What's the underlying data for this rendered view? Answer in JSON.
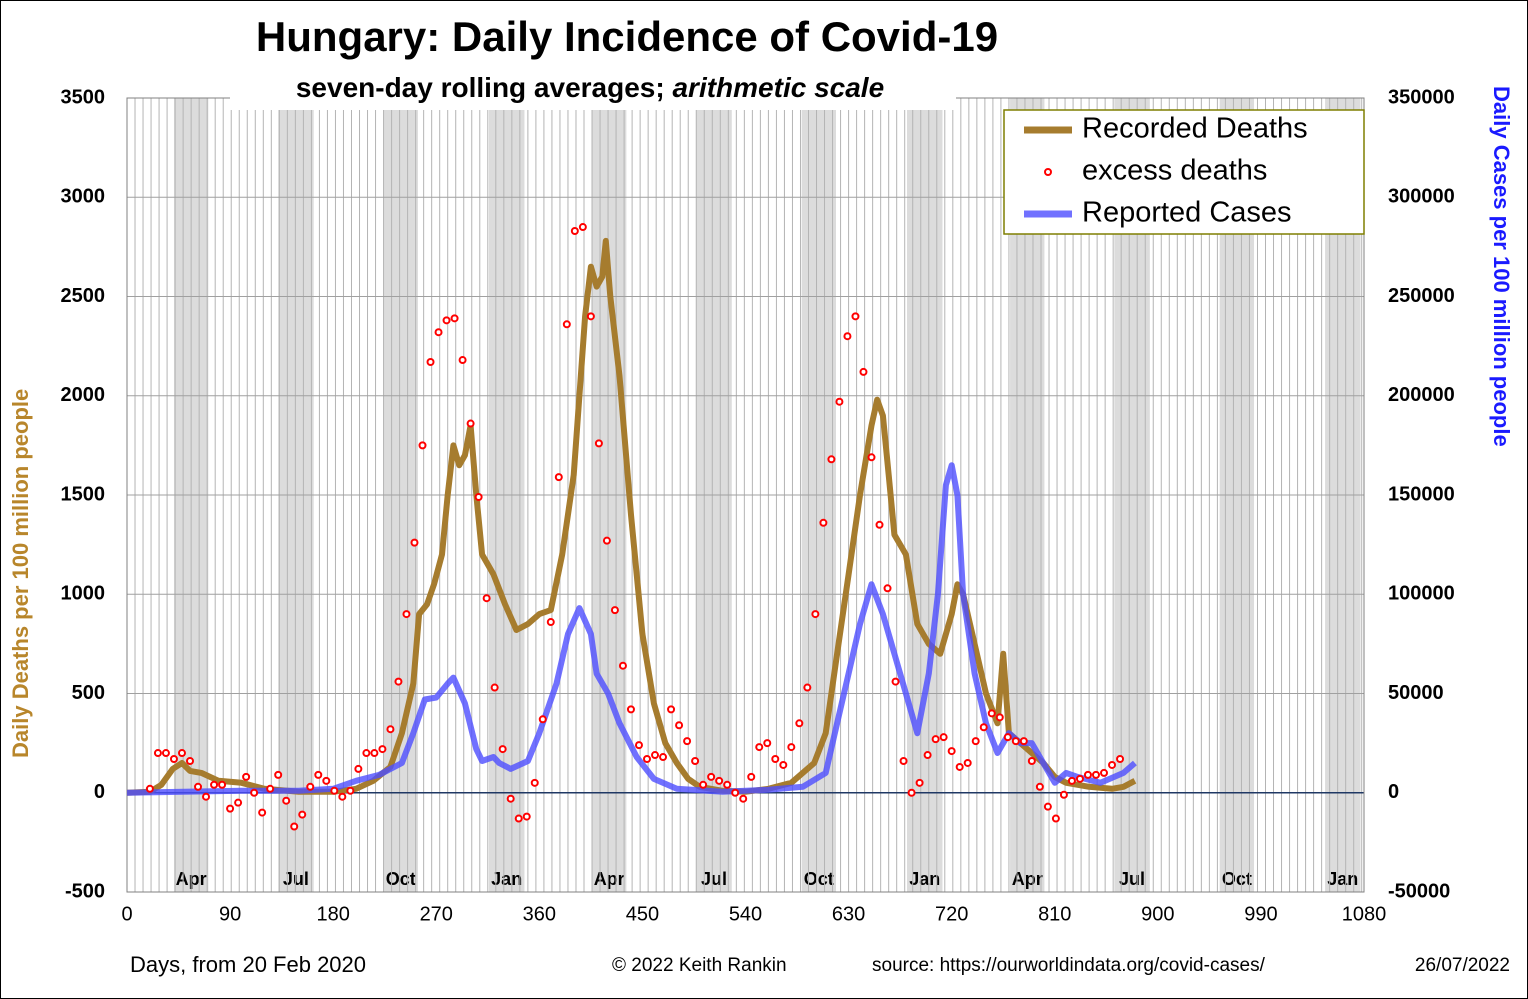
{
  "chart_data": {
    "type": "line",
    "title": "Hungary: Daily Incidence of Covid-19",
    "subtitle": "seven-day rolling averages; ",
    "subtitle_italic": "arithmetic scale",
    "xlabel": "Days, from 20 Feb 2020",
    "ylabel": "Daily Deaths per 100 million people",
    "y2label": "Daily Cases per 100 million people",
    "footer": [
      "© 2022  Keith Rankin",
      "source: https://ourworldindata.org/covid-cases/",
      "26/07/2022"
    ],
    "xlim": [
      0,
      1080
    ],
    "xticks": [
      0,
      90,
      180,
      270,
      360,
      450,
      540,
      630,
      720,
      810,
      900,
      990,
      1080
    ],
    "ylim": [
      -500,
      3500
    ],
    "yticks": [
      -500,
      0,
      500,
      1000,
      1500,
      2000,
      2500,
      3000,
      3500
    ],
    "y2lim": [
      -50000,
      350000
    ],
    "y2ticks": [
      -50000,
      0,
      50000,
      100000,
      150000,
      200000,
      250000,
      300000,
      350000
    ],
    "grid": true,
    "legend": "top-right",
    "month_bands": [
      {
        "label": "Apr",
        "start": 41,
        "end": 71
      },
      {
        "label": "Jul",
        "start": 132,
        "end": 163
      },
      {
        "label": "Oct",
        "start": 224,
        "end": 254
      },
      {
        "label": "Jan",
        "start": 316,
        "end": 347
      },
      {
        "label": "Apr",
        "start": 406,
        "end": 436
      },
      {
        "label": "Jul",
        "start": 497,
        "end": 528
      },
      {
        "label": "Oct",
        "start": 589,
        "end": 619
      },
      {
        "label": "Jan",
        "start": 681,
        "end": 712
      },
      {
        "label": "Apr",
        "start": 771,
        "end": 801
      },
      {
        "label": "Jul",
        "start": 862,
        "end": 893
      },
      {
        "label": "Oct",
        "start": 954,
        "end": 984
      },
      {
        "label": "Jan",
        "start": 1046,
        "end": 1077
      }
    ],
    "series": [
      {
        "name": "Recorded Deaths",
        "kind": "line",
        "color": "#a67c2e",
        "x": [
          0,
          20,
          30,
          40,
          48,
          55,
          65,
          80,
          100,
          120,
          150,
          180,
          200,
          215,
          230,
          240,
          250,
          255,
          262,
          268,
          275,
          280,
          285,
          290,
          295,
          300,
          305,
          310,
          320,
          330,
          340,
          350,
          360,
          370,
          380,
          390,
          395,
          400,
          405,
          410,
          415,
          418,
          422,
          430,
          440,
          450,
          460,
          470,
          480,
          490,
          500,
          520,
          540,
          560,
          580,
          600,
          610,
          620,
          630,
          640,
          650,
          655,
          660,
          665,
          670,
          680,
          690,
          700,
          710,
          720,
          725,
          730,
          740,
          750,
          760,
          765,
          770,
          780,
          790,
          800,
          810,
          820,
          840,
          860,
          870,
          880
        ],
        "values": [
          0,
          5,
          40,
          120,
          150,
          110,
          100,
          60,
          50,
          20,
          5,
          5,
          20,
          60,
          130,
          300,
          550,
          900,
          950,
          1050,
          1200,
          1500,
          1750,
          1650,
          1700,
          1850,
          1500,
          1200,
          1100,
          950,
          820,
          850,
          900,
          920,
          1200,
          1600,
          2000,
          2400,
          2650,
          2550,
          2600,
          2780,
          2500,
          2100,
          1400,
          800,
          450,
          250,
          150,
          70,
          30,
          10,
          5,
          20,
          50,
          150,
          300,
          700,
          1100,
          1500,
          1850,
          1980,
          1900,
          1600,
          1300,
          1200,
          850,
          750,
          700,
          900,
          1050,
          1000,
          750,
          500,
          350,
          700,
          300,
          250,
          200,
          150,
          80,
          50,
          30,
          20,
          30,
          60
        ]
      },
      {
        "name": "excess deaths",
        "kind": "scatter",
        "color": "#ff0000",
        "x": [
          20,
          27,
          34,
          41,
          48,
          55,
          62,
          69,
          76,
          83,
          90,
          97,
          104,
          111,
          118,
          125,
          132,
          139,
          146,
          153,
          160,
          167,
          174,
          181,
          188,
          195,
          202,
          209,
          216,
          223,
          230,
          237,
          244,
          251,
          258,
          265,
          272,
          279,
          286,
          293,
          300,
          307,
          314,
          321,
          328,
          335,
          342,
          349,
          356,
          363,
          370,
          377,
          384,
          391,
          398,
          405,
          412,
          419,
          426,
          433,
          440,
          447,
          454,
          461,
          468,
          475,
          482,
          489,
          496,
          503,
          510,
          517,
          524,
          531,
          538,
          545,
          552,
          559,
          566,
          573,
          580,
          587,
          594,
          601,
          608,
          615,
          622,
          629,
          636,
          643,
          650,
          657,
          664,
          671,
          678,
          685,
          692,
          699,
          706,
          713,
          720,
          727,
          734,
          741,
          748,
          755,
          762,
          769,
          776,
          783,
          790,
          797,
          804,
          811,
          818,
          825,
          832,
          839,
          846,
          853,
          860,
          867
        ],
        "values": [
          20,
          200,
          200,
          170,
          200,
          160,
          30,
          -20,
          40,
          40,
          -80,
          -50,
          80,
          0,
          -100,
          20,
          90,
          -40,
          -170,
          -110,
          30,
          90,
          60,
          10,
          -20,
          10,
          120,
          200,
          200,
          220,
          320,
          560,
          900,
          1260,
          1750,
          2170,
          2320,
          2380,
          2390,
          2180,
          1860,
          1490,
          980,
          530,
          220,
          -30,
          -130,
          -120,
          50,
          370,
          860,
          1590,
          2360,
          2830,
          2850,
          2400,
          1760,
          1270,
          920,
          640,
          420,
          240,
          170,
          190,
          180,
          420,
          340,
          260,
          160,
          40,
          80,
          60,
          40,
          0,
          -30,
          80,
          230,
          250,
          170,
          140,
          230,
          350,
          530,
          900,
          1360,
          1680,
          1970,
          2300,
          2400,
          2120,
          1690,
          1350,
          1030,
          560,
          160,
          0,
          50,
          190,
          270,
          280,
          210,
          130,
          150,
          260,
          330,
          400,
          380,
          280,
          260,
          260,
          160,
          30,
          -70,
          -130,
          -10,
          60,
          70,
          90,
          90,
          100,
          140,
          170
        ]
      },
      {
        "name": "Reported Cases",
        "kind": "line",
        "axis": "y2",
        "color": "#4d4dff",
        "x": [
          0,
          100,
          150,
          180,
          200,
          220,
          240,
          250,
          260,
          270,
          280,
          285,
          295,
          305,
          310,
          320,
          325,
          335,
          350,
          360,
          375,
          385,
          395,
          405,
          410,
          420,
          430,
          445,
          460,
          480,
          520,
          560,
          590,
          610,
          620,
          630,
          640,
          650,
          660,
          670,
          680,
          690,
          700,
          708,
          715,
          720,
          725,
          730,
          740,
          750,
          760,
          770,
          780,
          790,
          800,
          810,
          820,
          830,
          850,
          870,
          880
        ],
        "values": [
          0,
          1000,
          1000,
          2000,
          6000,
          9000,
          15000,
          30000,
          47000,
          48000,
          55000,
          58000,
          45000,
          22000,
          16000,
          18000,
          15000,
          12000,
          16000,
          30000,
          55000,
          80000,
          93000,
          80000,
          60000,
          50000,
          35000,
          18000,
          7000,
          2000,
          500,
          1500,
          3000,
          10000,
          35000,
          60000,
          85000,
          105000,
          90000,
          70000,
          50000,
          30000,
          60000,
          100000,
          155000,
          165000,
          150000,
          100000,
          60000,
          35000,
          20000,
          30000,
          25000,
          25000,
          15000,
          5000,
          10000,
          8000,
          5000,
          10000,
          15000
        ]
      }
    ]
  }
}
